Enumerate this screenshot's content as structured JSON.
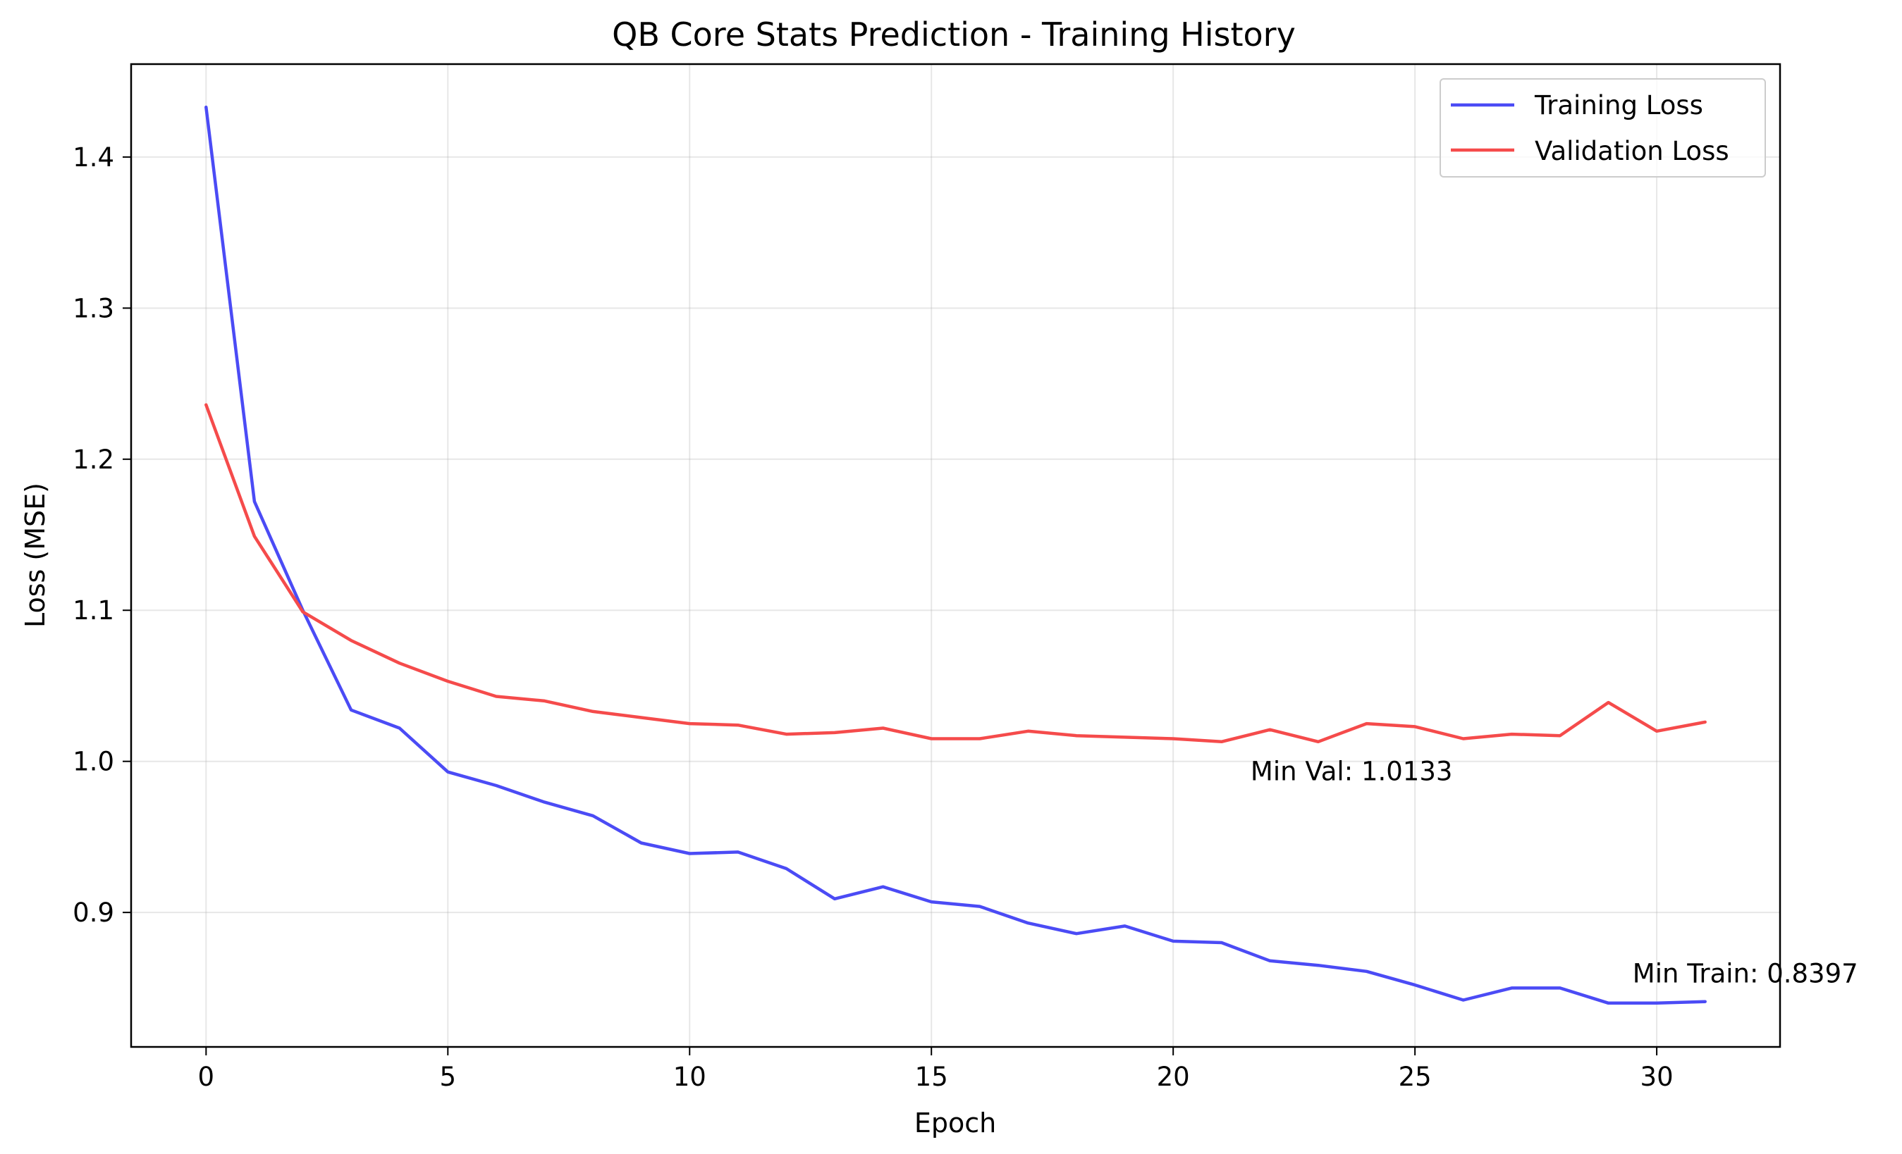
{
  "chart_data": {
    "type": "line",
    "title": "QB Core Stats Prediction - Training History",
    "xlabel": "Epoch",
    "ylabel": "Loss (MSE)",
    "xlim": [
      -1.55,
      32.55
    ],
    "ylim": [
      0.811,
      1.4615
    ],
    "xticks": [
      0,
      5,
      10,
      15,
      20,
      25,
      30
    ],
    "yticks": [
      0.9,
      1.0,
      1.1,
      1.2,
      1.3,
      1.4
    ],
    "ytick_labels": [
      "0.9",
      "1.0",
      "1.1",
      "1.2",
      "1.3",
      "1.4"
    ],
    "grid": true,
    "legend_position": "top-right",
    "x": [
      0,
      1,
      2,
      3,
      4,
      5,
      6,
      7,
      8,
      9,
      10,
      11,
      12,
      13,
      14,
      15,
      16,
      17,
      18,
      19,
      20,
      21,
      22,
      23,
      24,
      25,
      26,
      27,
      28,
      29,
      30,
      31
    ],
    "series": [
      {
        "name": "Training Loss",
        "color": "#4b4bf5",
        "values": [
          1.433,
          1.172,
          1.1,
          1.034,
          1.022,
          0.993,
          0.984,
          0.973,
          0.964,
          0.946,
          0.939,
          0.94,
          0.929,
          0.909,
          0.917,
          0.907,
          0.904,
          0.893,
          0.886,
          0.891,
          0.881,
          0.88,
          0.868,
          0.865,
          0.861,
          0.852,
          0.842,
          0.85,
          0.85,
          0.84,
          0.84,
          0.841
        ]
      },
      {
        "name": "Validation Loss",
        "color": "#f54b4b",
        "values": [
          1.236,
          1.149,
          1.099,
          1.08,
          1.065,
          1.053,
          1.043,
          1.04,
          1.033,
          1.029,
          1.025,
          1.024,
          1.018,
          1.019,
          1.022,
          1.015,
          1.015,
          1.02,
          1.017,
          1.016,
          1.015,
          1.013,
          1.021,
          1.013,
          1.025,
          1.023,
          1.015,
          1.018,
          1.017,
          1.039,
          1.02,
          1.026
        ]
      }
    ],
    "annotations": [
      {
        "text": "Min Val: 1.0133",
        "x": 21.6,
        "y": 0.9935
      },
      {
        "text": "Min Train: 0.8397",
        "x": 29.5,
        "y": 0.8597
      }
    ]
  }
}
